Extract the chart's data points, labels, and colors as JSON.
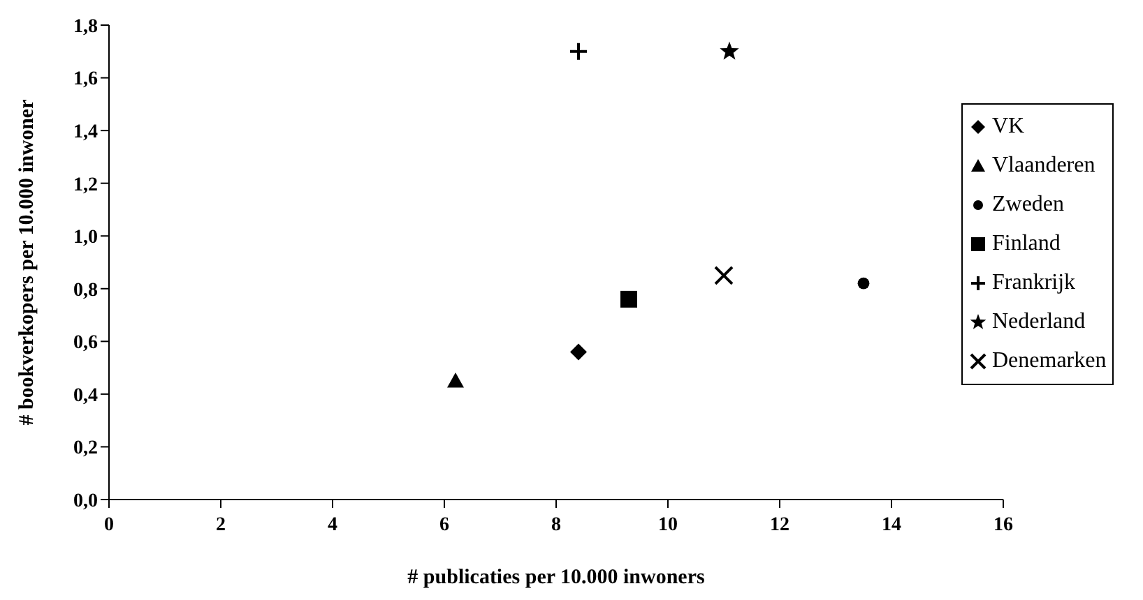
{
  "chart_data": {
    "type": "scatter",
    "xlabel": "# publicaties per 10.000 inwoners",
    "ylabel": "# bookverkopers per 10.000 inwoner",
    "xlim": [
      0,
      16
    ],
    "xticks": [
      0,
      2,
      4,
      6,
      8,
      10,
      12,
      14,
      16
    ],
    "ylim": [
      0,
      1.8
    ],
    "yticks": [
      {
        "value": 0,
        "label": "0,0"
      },
      {
        "value": 0.2,
        "label": "0,2"
      },
      {
        "value": 0.4,
        "label": "0,4"
      },
      {
        "value": 0.6,
        "label": "0,6"
      },
      {
        "value": 0.8,
        "label": "0,8"
      },
      {
        "value": 1.0,
        "label": "1,0"
      },
      {
        "value": 1.2,
        "label": "1,2"
      },
      {
        "value": 1.4,
        "label": "1,4"
      },
      {
        "value": 1.6,
        "label": "1,6"
      },
      {
        "value": 1.8,
        "label": "1,8"
      }
    ],
    "grid": false,
    "legend": "right",
    "series": [
      {
        "name": "VK",
        "color": "#000000",
        "marker": "diamond",
        "x": [
          8.4
        ],
        "values": [
          0.56
        ]
      },
      {
        "name": "Vlaanderen",
        "color": "#000000",
        "marker": "triangle",
        "x": [
          6.2
        ],
        "values": [
          0.45
        ]
      },
      {
        "name": "Zweden",
        "color": "#000000",
        "marker": "circle",
        "x": [
          13.5
        ],
        "values": [
          0.82
        ]
      },
      {
        "name": "Finland",
        "color": "#000000",
        "marker": "square",
        "x": [
          9.3
        ],
        "values": [
          0.76
        ]
      },
      {
        "name": "Frankrijk",
        "color": "#000000",
        "marker": "cross",
        "x": [
          8.4
        ],
        "values": [
          1.7
        ]
      },
      {
        "name": "Nederland",
        "color": "#000000",
        "marker": "star",
        "x": [
          11.1
        ],
        "values": [
          1.7
        ]
      },
      {
        "name": "Denemarken",
        "color": "#000000",
        "marker": "x",
        "x": [
          11.0
        ],
        "values": [
          0.85
        ]
      }
    ]
  }
}
